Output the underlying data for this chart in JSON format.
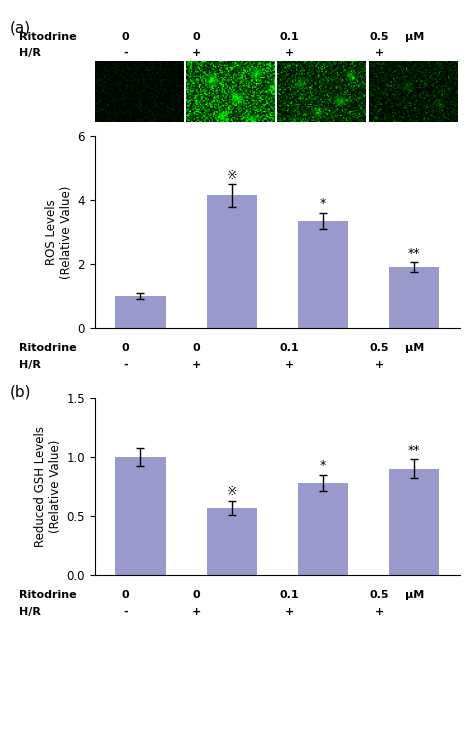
{
  "bar_color": "#9999CC",
  "panel_a": {
    "values": [
      1.0,
      4.15,
      3.35,
      1.9
    ],
    "errors": [
      0.1,
      0.35,
      0.25,
      0.15
    ],
    "ylim": [
      0,
      6
    ],
    "yticks": [
      0,
      2,
      4,
      6
    ],
    "ylabel": "ROS Levels\n(Relative Value)",
    "ritodrine_labels": [
      "0",
      "0",
      "0.1",
      "0.5 μM"
    ],
    "hr_labels": [
      "-",
      "+",
      "+",
      "+"
    ]
  },
  "panel_b": {
    "values": [
      1.0,
      0.57,
      0.78,
      0.9
    ],
    "errors": [
      0.08,
      0.06,
      0.07,
      0.08
    ],
    "ylim": [
      0,
      1.5
    ],
    "yticks": [
      0.0,
      0.5,
      1.0,
      1.5
    ],
    "ylabel": "Reduced GSH Levels\n(Relative Value)",
    "ritodrine_labels": [
      "0",
      "0",
      "0.1",
      "0.5 μM"
    ],
    "hr_labels": [
      "-",
      "+",
      "+",
      "+"
    ]
  },
  "fig_width": 4.74,
  "fig_height": 7.37,
  "dpi": 100
}
